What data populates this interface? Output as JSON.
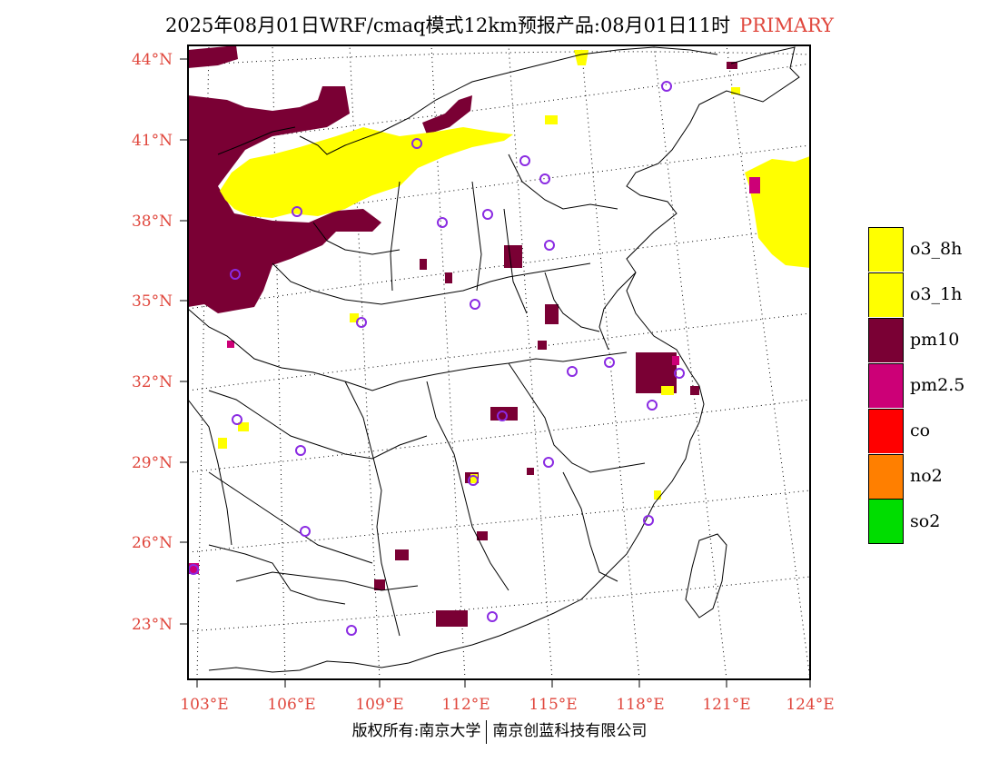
{
  "header": {
    "title": "2025年08月01日WRF/cmaq模式12km预报产品:08月01日11时",
    "tag": "PRIMARY"
  },
  "map": {
    "lat_labels": [
      "44°N",
      "41°N",
      "38°N",
      "35°N",
      "32°N",
      "29°N",
      "26°N",
      "23°N"
    ],
    "lon_labels": [
      "103°E",
      "106°E",
      "109°E",
      "112°E",
      "115°E",
      "118°E",
      "121°E",
      "124°E"
    ],
    "colors": {
      "o3_8h": "#ffff00",
      "o3_1h": "#ffff00",
      "pm10": "#7a0034",
      "pm2_5": "#cc0077",
      "co": "#ff0000",
      "no2": "#ff7f00",
      "so2": "#00dd00",
      "station": "#8a2be2",
      "axis": "#e0473d"
    }
  },
  "legend": {
    "items": [
      {
        "label": "o3_8h",
        "color": "#ffff00"
      },
      {
        "label": "o3_1h",
        "color": "#ffff00"
      },
      {
        "label": "pm10",
        "color": "#7a0034"
      },
      {
        "label": "pm2.5",
        "color": "#cc0077"
      },
      {
        "label": "co",
        "color": "#ff0000"
      },
      {
        "label": "no2",
        "color": "#ff7f00"
      },
      {
        "label": "so2",
        "color": "#00dd00"
      }
    ]
  },
  "footer": {
    "left": "版权所有:南京大学",
    "right": "南京创蓝科技有限公司"
  }
}
